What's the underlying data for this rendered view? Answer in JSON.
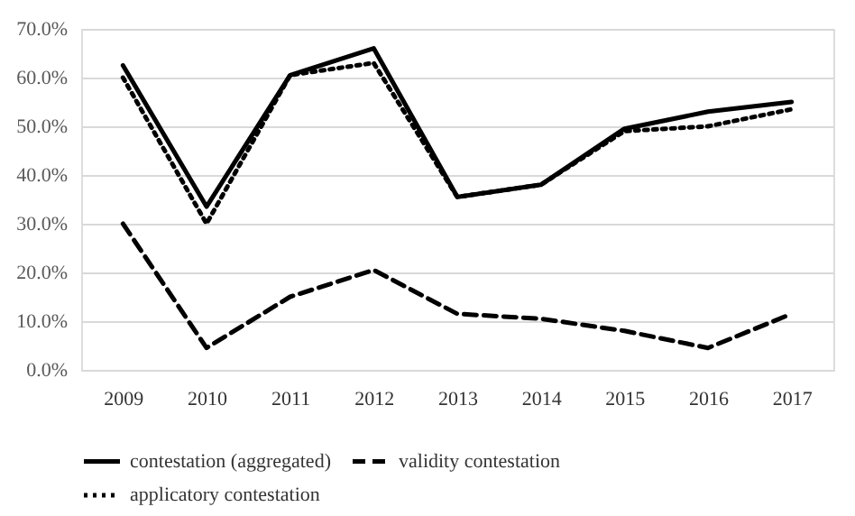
{
  "chart_data": {
    "type": "line",
    "categories": [
      "2009",
      "2010",
      "2011",
      "2012",
      "2013",
      "2014",
      "2015",
      "2016",
      "2017"
    ],
    "series": [
      {
        "name": "contestation (aggregated)",
        "color": "#000000",
        "line_style": "solid",
        "values": [
          62.5,
          33.5,
          60.5,
          66,
          35.5,
          38,
          49.5,
          53,
          55
        ]
      },
      {
        "name": "validity contestation",
        "color": "#000000",
        "line_style": "dashed",
        "values": [
          30,
          4.5,
          15,
          20.5,
          11.5,
          10.5,
          8,
          4.5,
          11.5
        ]
      },
      {
        "name": "applicatory contestation",
        "color": "#000000",
        "line_style": "dotted",
        "values": [
          60,
          30,
          60.5,
          63,
          35.5,
          38,
          49,
          50,
          53.5
        ]
      }
    ],
    "ylim": [
      0,
      70
    ],
    "yticks": [
      {
        "value": 0,
        "label": "0.0%"
      },
      {
        "value": 10,
        "label": "10.0%"
      },
      {
        "value": 20,
        "label": "20.0%"
      },
      {
        "value": 30,
        "label": "30.0%"
      },
      {
        "value": 40,
        "label": "40.0%"
      },
      {
        "value": 50,
        "label": "50.0%"
      },
      {
        "value": 60,
        "label": "60.0%"
      },
      {
        "value": 70,
        "label": "70.0%"
      }
    ],
    "grid": "y",
    "legend": "bottom",
    "marker": "none"
  }
}
